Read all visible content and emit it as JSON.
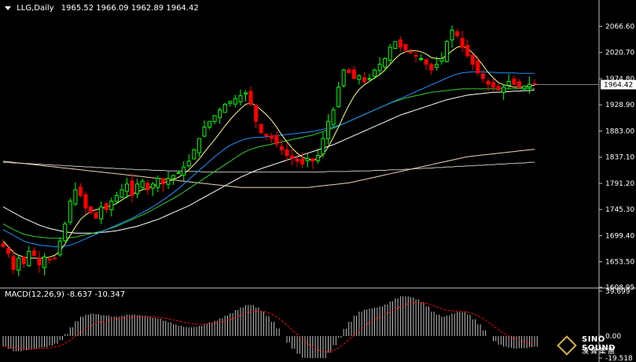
{
  "header": {
    "symbol": "LLG,Daily",
    "ohlc": "1965.52 1966.09 1962.89 1964.42"
  },
  "price_axis": {
    "ticks": [
      "2066.60",
      "2020.70",
      "1974.80",
      "1928.90",
      "1883.00",
      "1837.10",
      "1791.20",
      "1745.30",
      "1699.40",
      "1653.50",
      "1608.95"
    ],
    "current_price": "1964.42"
  },
  "macd": {
    "label": "MACD(12,26,9) -8.637 -10.347",
    "ticks": [
      "39.699",
      "0.00",
      "-19.518"
    ]
  },
  "logo": {
    "brand": "SINO SOUND",
    "brand_cn": "漢聲集團"
  },
  "colors": {
    "bull_candle": "#00ff00",
    "bear_candle": "#ff0000",
    "ma_yellow": "#ffff80",
    "ma_blue": "#1e90ff",
    "ma_green": "#33cc33",
    "ma_white": "#ffffff",
    "ma_tan": "#e8d8b0",
    "ma_gray": "#c0c0c0",
    "macd_hist": "#c0c0c0",
    "macd_signal": "#ff0000",
    "axis": "#c0c0c0"
  },
  "chart_data": {
    "type": "candlestick",
    "ylim": [
      1608.95,
      2088
    ],
    "close_path": [
      1680,
      1668,
      1640,
      1660,
      1650,
      1672,
      1665,
      1648,
      1662,
      1658,
      1660,
      1690,
      1720,
      1760,
      1780,
      1770,
      1748,
      1740,
      1730,
      1750,
      1745,
      1760,
      1770,
      1780,
      1790,
      1770,
      1790,
      1795,
      1780,
      1790,
      1800,
      1790,
      1800,
      1805,
      1810,
      1820,
      1830,
      1850,
      1870,
      1890,
      1900,
      1910,
      1920,
      1930,
      1935,
      1940,
      1945,
      1950,
      1930,
      1900,
      1880,
      1875,
      1870,
      1860,
      1850,
      1840,
      1835,
      1830,
      1825,
      1835,
      1830,
      1840,
      1870,
      1900,
      1920,
      1960,
      1990,
      1985,
      1975,
      1980,
      1970,
      1975,
      1990,
      2000,
      2010,
      2030,
      2040,
      2030,
      2025,
      2020,
      2015,
      2010,
      2000,
      1990,
      2000,
      2010,
      2040,
      2060,
      2050,
      2030,
      2015,
      2000,
      1985,
      1975,
      1965,
      1960,
      1955,
      1960,
      1970,
      1965,
      1960,
      1962,
      1965,
      1964.42
    ],
    "ma_fast": [
      1690,
      1680,
      1670,
      1665,
      1662,
      1660,
      1660,
      1660,
      1660,
      1662,
      1665,
      1672,
      1685,
      1700,
      1715,
      1728,
      1736,
      1742,
      1745,
      1747,
      1750,
      1752,
      1756,
      1762,
      1768,
      1772,
      1776,
      1780,
      1783,
      1786,
      1790,
      1792,
      1795,
      1798,
      1802,
      1808,
      1815,
      1824,
      1834,
      1846,
      1857,
      1868,
      1880,
      1892,
      1903,
      1913,
      1922,
      1930,
      1932,
      1928,
      1920,
      1912,
      1902,
      1890,
      1876,
      1864,
      1853,
      1844,
      1837,
      1834,
      1832,
      1834,
      1842,
      1855,
      1872,
      1890,
      1910,
      1928,
      1944,
      1956,
      1964,
      1970,
      1976,
      1982,
      1990,
      2000,
      2010,
      2018,
      2022,
      2024,
      2024,
      2022,
      2018,
      2012,
      2010,
      2010,
      2016,
      2024,
      2030,
      2032,
      2028,
      2020,
      2010,
      1998,
      1986,
      1976,
      1968,
      1964,
      1962,
      1960,
      1960,
      1960,
      1962,
      1963
    ],
    "ma_blue": [
      1710,
      1705,
      1700,
      1695,
      1690,
      1687,
      1685,
      1683,
      1682,
      1681,
      1680,
      1680,
      1681,
      1683,
      1686,
      1690,
      1694,
      1698,
      1702,
      1706,
      1710,
      1714,
      1718,
      1722,
      1726,
      1730,
      1735,
      1740,
      1745,
      1750,
      1756,
      1762,
      1768,
      1775,
      1782,
      1790,
      1798,
      1806,
      1814,
      1822,
      1830,
      1838,
      1845,
      1852,
      1858,
      1862,
      1866,
      1869,
      1871,
      1872,
      1872,
      1873,
      1874,
      1875,
      1876,
      1877,
      1878,
      1879,
      1880,
      1881,
      1882,
      1884,
      1886,
      1888,
      1890,
      1893,
      1896,
      1900,
      1904,
      1908,
      1912,
      1916,
      1920,
      1924,
      1928,
      1932,
      1936,
      1940,
      1944,
      1948,
      1952,
      1956,
      1960,
      1964,
      1968,
      1972,
      1976,
      1980,
      1983,
      1985,
      1986,
      1987,
      1987,
      1987,
      1986,
      1986,
      1985,
      1985,
      1985,
      1985,
      1984,
      1984,
      1984,
      1984
    ],
    "ma_green": [
      1720,
      1715,
      1710,
      1706,
      1702,
      1700,
      1698,
      1697,
      1696,
      1695,
      1695,
      1695,
      1695,
      1696,
      1697,
      1699,
      1701,
      1703,
      1705,
      1707,
      1710,
      1713,
      1716,
      1720,
      1724,
      1728,
      1732,
      1736,
      1740,
      1745,
      1750,
      1755,
      1760,
      1765,
      1770,
      1776,
      1782,
      1788,
      1794,
      1800,
      1806,
      1812,
      1818,
      1824,
      1830,
      1836,
      1842,
      1847,
      1851,
      1854,
      1856,
      1858,
      1860,
      1862,
      1864,
      1866,
      1868,
      1870,
      1872,
      1874,
      1876,
      1879,
      1882,
      1885,
      1888,
      1892,
      1896,
      1900,
      1904,
      1908,
      1912,
      1916,
      1920,
      1924,
      1928,
      1932,
      1935,
      1938,
      1941,
      1943,
      1945,
      1947,
      1949,
      1951,
      1952,
      1953,
      1954,
      1955,
      1956,
      1957,
      1957,
      1957,
      1957,
      1957,
      1957,
      1957,
      1957,
      1957,
      1957,
      1957,
      1958,
      1958,
      1958,
      1958
    ],
    "ma_white": [
      1750,
      1745,
      1740,
      1735,
      1730,
      1726,
      1722,
      1718,
      1715,
      1712,
      1710,
      1708,
      1706,
      1705,
      1704,
      1704,
      1704,
      1704,
      1704,
      1705,
      1706,
      1707,
      1708,
      1710,
      1712,
      1714,
      1716,
      1719,
      1722,
      1725,
      1728,
      1732,
      1736,
      1740,
      1744,
      1748,
      1752,
      1757,
      1762,
      1767,
      1772,
      1777,
      1782,
      1787,
      1792,
      1797,
      1802,
      1806,
      1810,
      1814,
      1817,
      1820,
      1823,
      1826,
      1829,
      1832,
      1835,
      1838,
      1841,
      1844,
      1847,
      1850,
      1853,
      1856,
      1859,
      1863,
      1867,
      1871,
      1875,
      1879,
      1883,
      1887,
      1891,
      1895,
      1899,
      1903,
      1907,
      1911,
      1914,
      1917,
      1920,
      1923,
      1926,
      1929,
      1932,
      1935,
      1938,
      1940,
      1942,
      1944,
      1946,
      1947,
      1948,
      1949,
      1950,
      1951,
      1951,
      1952,
      1952,
      1953,
      1953,
      1954,
      1954,
      1955
    ],
    "ma_tan": [
      1830,
      1829,
      1828,
      1827,
      1826,
      1825,
      1824,
      1823,
      1822,
      1821,
      1820,
      1819,
      1818,
      1817,
      1816,
      1815,
      1814,
      1813,
      1812,
      1811,
      1810,
      1809,
      1808,
      1807,
      1806,
      1805,
      1804,
      1803,
      1802,
      1801,
      1800,
      1799,
      1798,
      1797,
      1796,
      1795,
      1794,
      1793,
      1792,
      1791,
      1790,
      1789,
      1788,
      1787,
      1786,
      1785,
      1784,
      1784,
      1784,
      1784,
      1784,
      1784,
      1784,
      1784,
      1784,
      1784,
      1784,
      1784,
      1784,
      1784,
      1785,
      1786,
      1787,
      1788,
      1789,
      1790,
      1791,
      1792,
      1794,
      1796,
      1798,
      1800,
      1802,
      1804,
      1806,
      1808,
      1810,
      1812,
      1814,
      1816,
      1818,
      1820,
      1822,
      1824,
      1826,
      1828,
      1830,
      1832,
      1834,
      1836,
      1838,
      1839,
      1840,
      1841,
      1842,
      1843,
      1844,
      1845,
      1846,
      1847,
      1848,
      1849,
      1850,
      1851
    ],
    "ma_gray": [
      1828,
      1828,
      1827,
      1827,
      1826,
      1826,
      1825,
      1825,
      1824,
      1824,
      1823,
      1823,
      1822,
      1822,
      1821,
      1821,
      1820,
      1820,
      1819,
      1819,
      1818,
      1818,
      1817,
      1817,
      1816,
      1816,
      1815,
      1815,
      1815,
      1814,
      1814,
      1814,
      1813,
      1813,
      1813,
      1812,
      1812,
      1812,
      1812,
      1811,
      1811,
      1811,
      1811,
      1811,
      1811,
      1811,
      1811,
      1811,
      1811,
      1811,
      1811,
      1811,
      1811,
      1811,
      1811,
      1811,
      1811,
      1811,
      1811,
      1811,
      1811,
      1811,
      1811,
      1812,
      1812,
      1812,
      1812,
      1812,
      1813,
      1813,
      1813,
      1813,
      1814,
      1814,
      1814,
      1815,
      1815,
      1815,
      1816,
      1816,
      1817,
      1817,
      1818,
      1818,
      1819,
      1819,
      1820,
      1820,
      1821,
      1821,
      1822,
      1822,
      1823,
      1823,
      1824,
      1824,
      1825,
      1825,
      1826,
      1826,
      1827,
      1827,
      1828,
      1828
    ],
    "macd_ylim": [
      -19.518,
      39.699
    ]
  }
}
